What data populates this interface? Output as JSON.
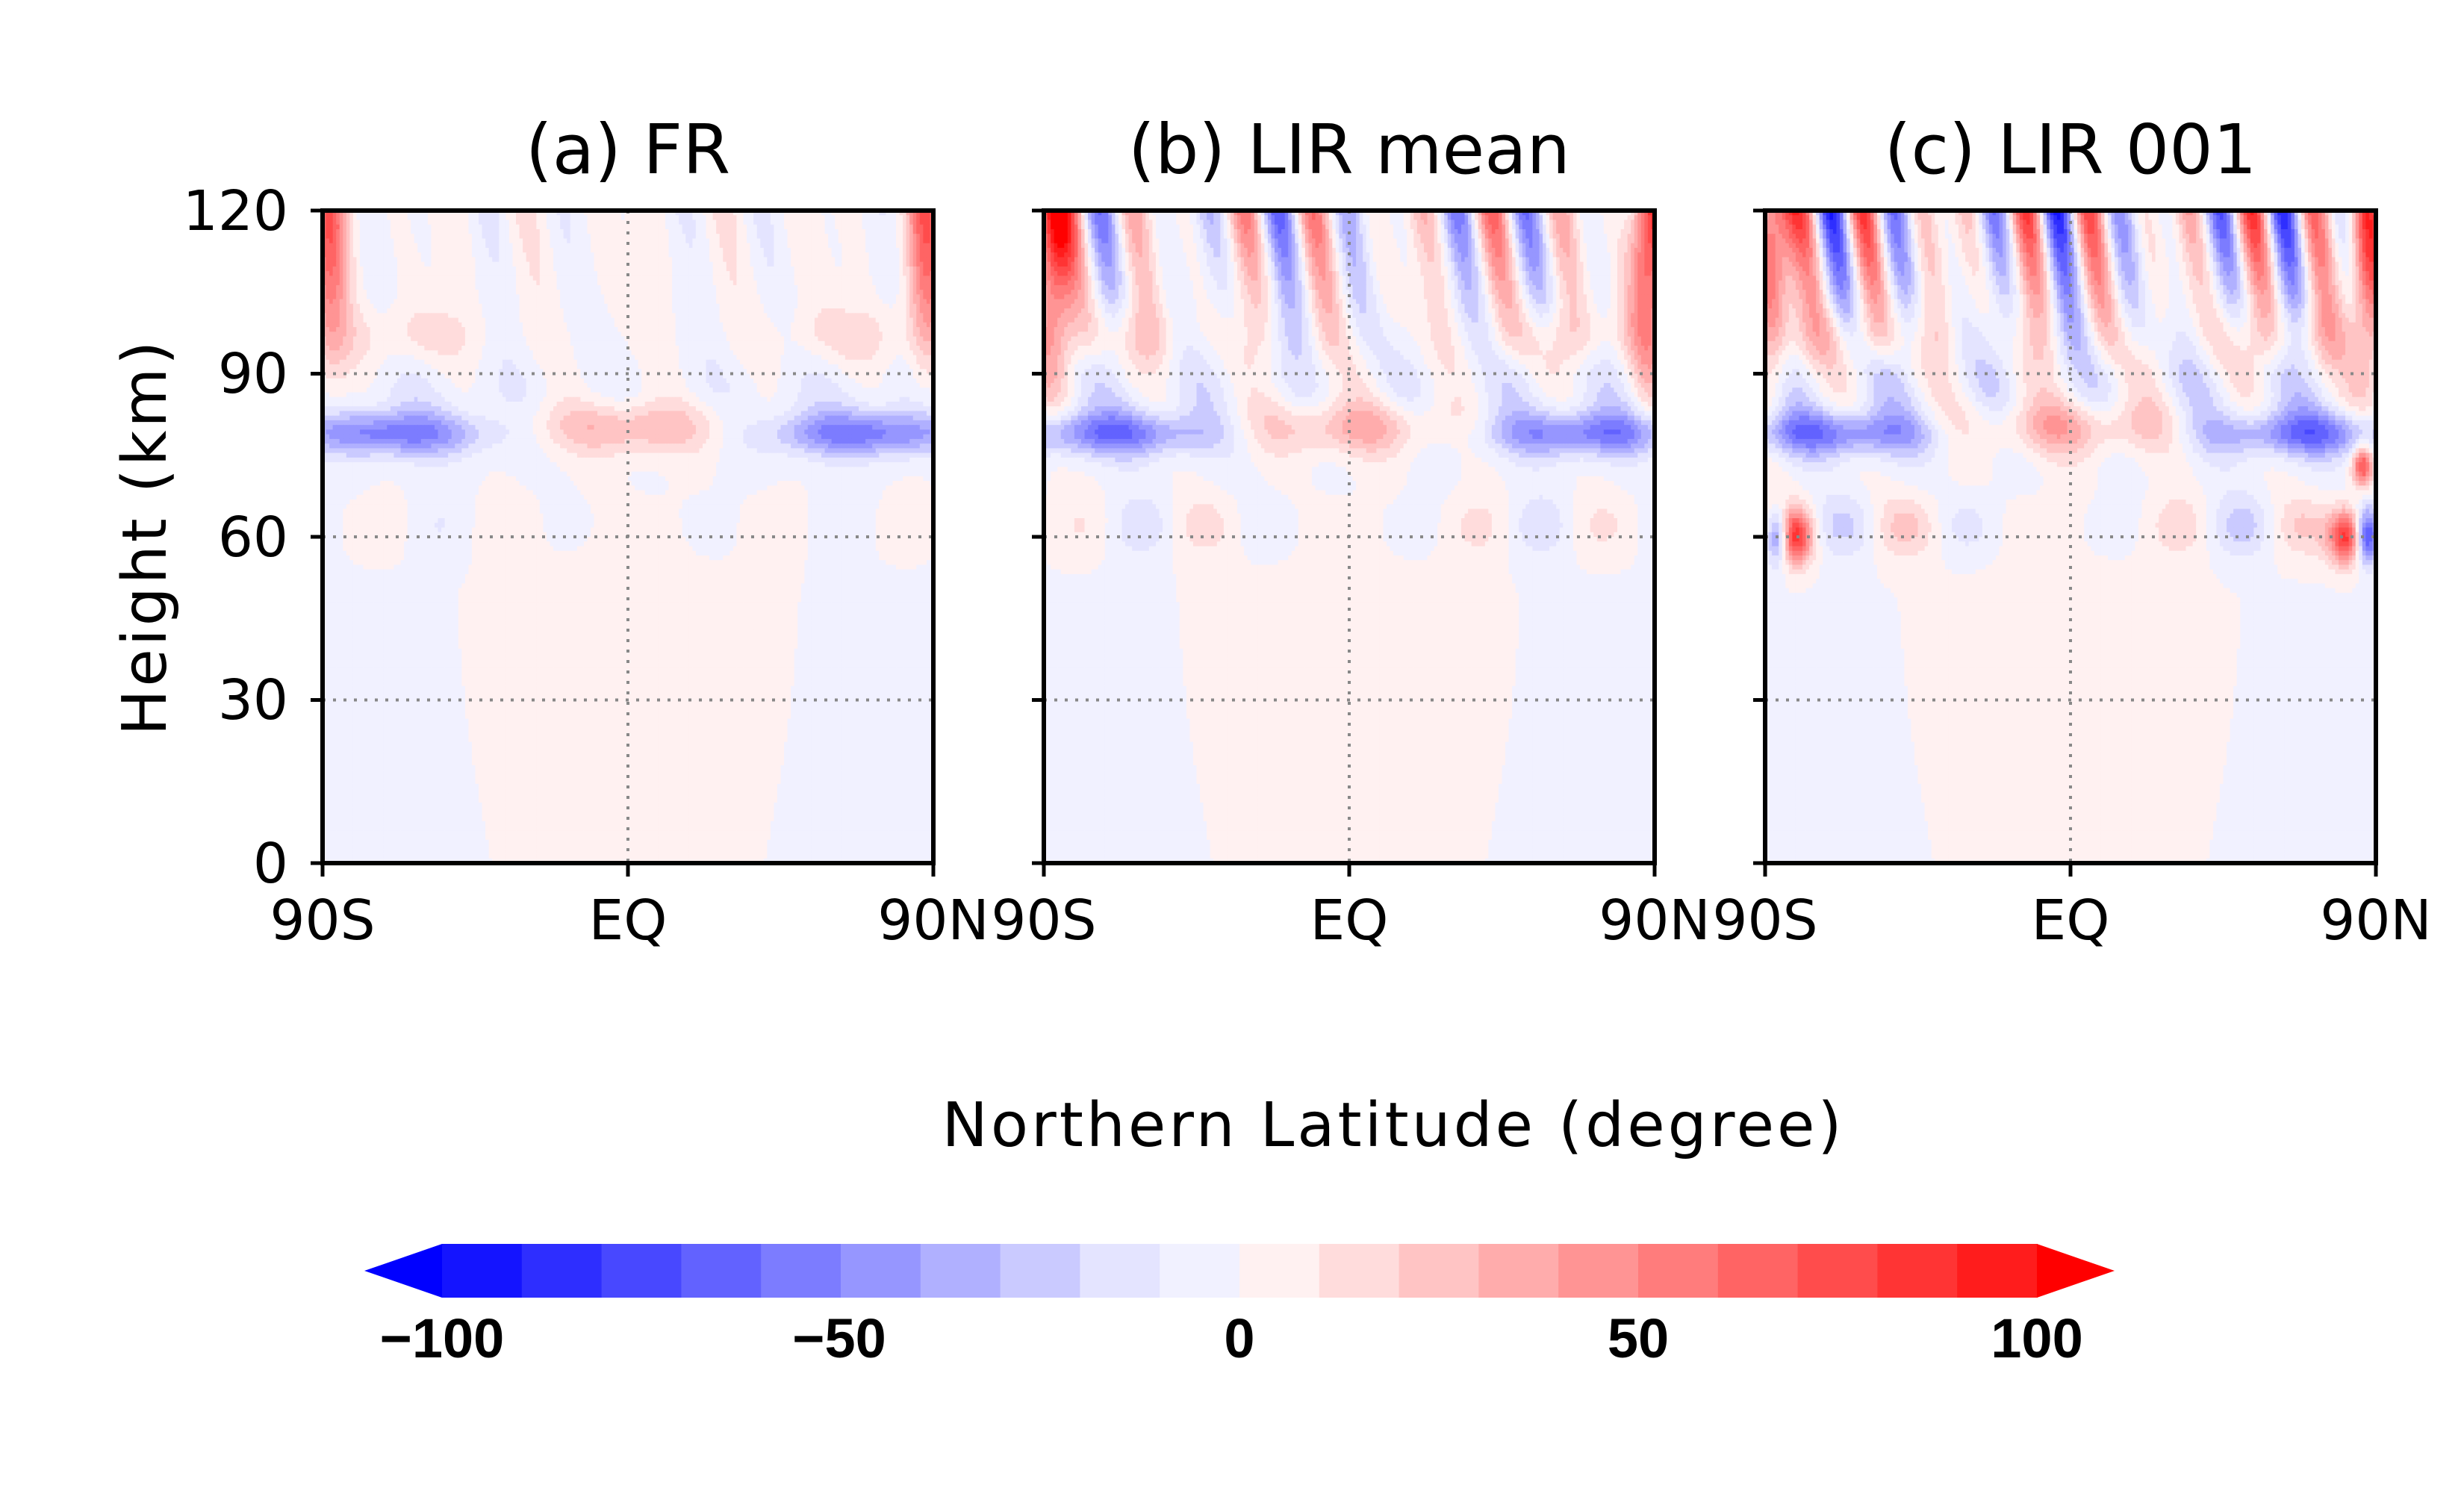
{
  "chart_data": {
    "type": "heatmap",
    "panels": [
      {
        "id": "a",
        "title": "(a) FR",
        "seed": 1,
        "noise": 0.55
      },
      {
        "id": "b",
        "title": "(b) LIR mean",
        "seed": 2,
        "noise": 1.0
      },
      {
        "id": "c",
        "title": "(c) LIR 001",
        "seed": 3,
        "noise": 1.45
      }
    ],
    "xlabel": "Northern Latitude (degree)",
    "ylabel": "Height (km)",
    "xlim": [
      -90,
      90
    ],
    "ylim": [
      0,
      120
    ],
    "xticks": [
      {
        "value": -90,
        "label": "90S"
      },
      {
        "value": 0,
        "label": "EQ"
      },
      {
        "value": 90,
        "label": "90N"
      }
    ],
    "yticks": [
      0,
      30,
      60,
      90,
      120
    ],
    "grid": "dotted at EQ and 30, 60, 90 km",
    "colorbar": {
      "min": -100,
      "max": 100,
      "step": 10,
      "extend": "both",
      "ticks": [
        "−100",
        "−50",
        "0",
        "50",
        "100"
      ],
      "colors": [
        "#0000ff",
        "#1414ff",
        "#2e2eff",
        "#4848ff",
        "#6262ff",
        "#7c7cff",
        "#9696ff",
        "#b0b0ff",
        "#cacaff",
        "#e4e4ff",
        "#f1f1ff",
        "#fff1f1",
        "#ffdcdc",
        "#ffc4c4",
        "#ffacac",
        "#ff9494",
        "#ff7c7c",
        "#ff6464",
        "#ff4c4c",
        "#ff3434",
        "#ff1c1c",
        "#ff0000"
      ]
    }
  }
}
